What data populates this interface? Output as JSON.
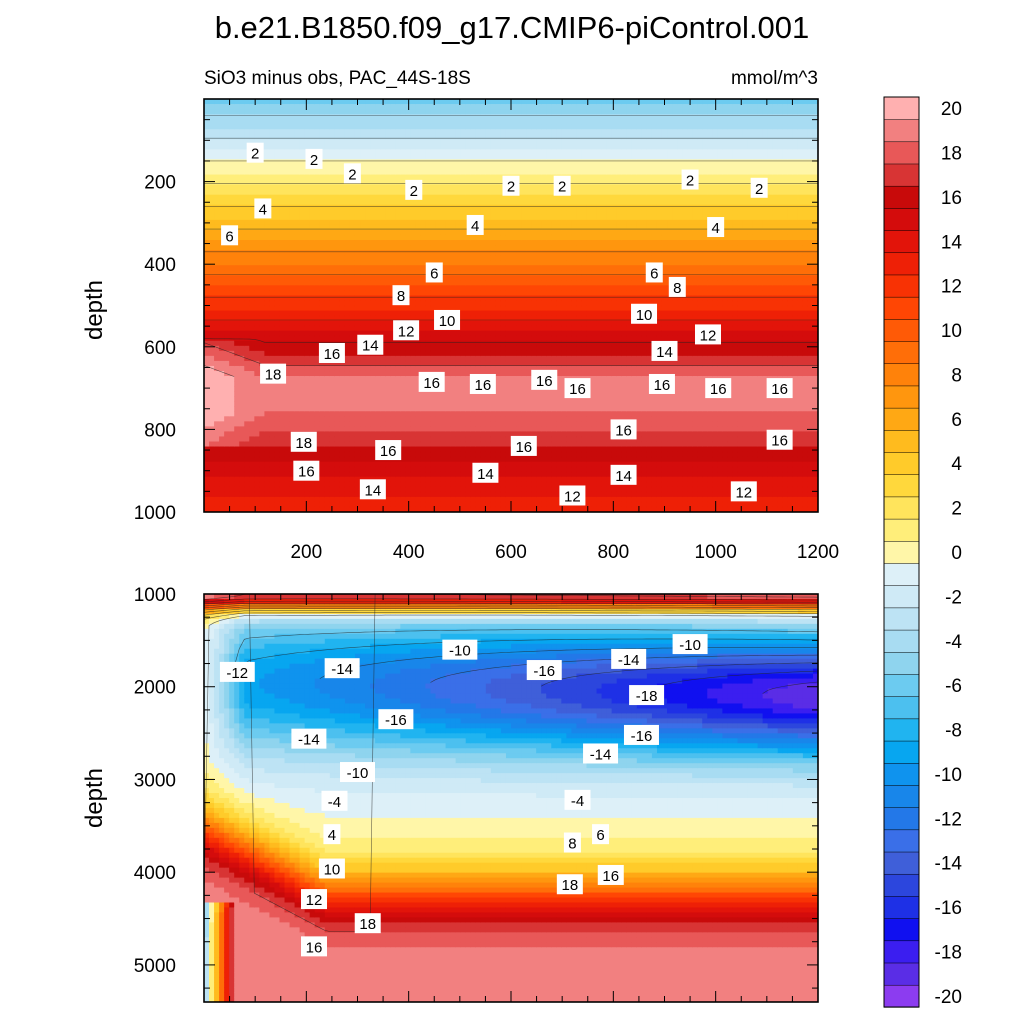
{
  "chart_data": {
    "type": "contour",
    "title": "b.e21.B1850.f09_g17.CMIP6-piControl.001",
    "subtitle": "SiO3 minus obs, PAC_44S-18S",
    "units": "mmol/m^3",
    "ylabel": "depth",
    "xlim": [
      0,
      1200
    ],
    "x_ticks": [
      200,
      400,
      600,
      800,
      1000,
      1200
    ],
    "upper_panel": {
      "ylim": [
        1000,
        0
      ],
      "y_ticks": [
        200,
        400,
        600,
        800,
        1000
      ],
      "contour_labels": [
        {
          "x": 100,
          "y": 130,
          "v": "2"
        },
        {
          "x": 215,
          "y": 145,
          "v": "2"
        },
        {
          "x": 290,
          "y": 180,
          "v": "2"
        },
        {
          "x": 410,
          "y": 220,
          "v": "2"
        },
        {
          "x": 600,
          "y": 210,
          "v": "2"
        },
        {
          "x": 700,
          "y": 210,
          "v": "2"
        },
        {
          "x": 950,
          "y": 195,
          "v": "2"
        },
        {
          "x": 1085,
          "y": 215,
          "v": "2"
        },
        {
          "x": 115,
          "y": 265,
          "v": "4"
        },
        {
          "x": 530,
          "y": 305,
          "v": "4"
        },
        {
          "x": 1000,
          "y": 310,
          "v": "4"
        },
        {
          "x": 50,
          "y": 330,
          "v": "6"
        },
        {
          "x": 450,
          "y": 420,
          "v": "6"
        },
        {
          "x": 880,
          "y": 420,
          "v": "6"
        },
        {
          "x": 385,
          "y": 475,
          "v": "8"
        },
        {
          "x": 925,
          "y": 455,
          "v": "8"
        },
        {
          "x": 475,
          "y": 535,
          "v": "10"
        },
        {
          "x": 860,
          "y": 520,
          "v": "10"
        },
        {
          "x": 395,
          "y": 560,
          "v": "12"
        },
        {
          "x": 985,
          "y": 570,
          "v": "12"
        },
        {
          "x": 325,
          "y": 595,
          "v": "14"
        },
        {
          "x": 900,
          "y": 610,
          "v": "14"
        },
        {
          "x": 250,
          "y": 615,
          "v": "16"
        },
        {
          "x": 445,
          "y": 685,
          "v": "16"
        },
        {
          "x": 545,
          "y": 690,
          "v": "16"
        },
        {
          "x": 665,
          "y": 680,
          "v": "16"
        },
        {
          "x": 730,
          "y": 700,
          "v": "16"
        },
        {
          "x": 895,
          "y": 690,
          "v": "16"
        },
        {
          "x": 1005,
          "y": 700,
          "v": "16"
        },
        {
          "x": 1125,
          "y": 700,
          "v": "16"
        },
        {
          "x": 135,
          "y": 665,
          "v": "18"
        },
        {
          "x": 195,
          "y": 830,
          "v": "18"
        },
        {
          "x": 820,
          "y": 800,
          "v": "16"
        },
        {
          "x": 1125,
          "y": 825,
          "v": "16"
        },
        {
          "x": 360,
          "y": 850,
          "v": "16"
        },
        {
          "x": 625,
          "y": 840,
          "v": "16"
        },
        {
          "x": 200,
          "y": 900,
          "v": "16"
        },
        {
          "x": 820,
          "y": 910,
          "v": "14"
        },
        {
          "x": 550,
          "y": 905,
          "v": "14"
        },
        {
          "x": 330,
          "y": 945,
          "v": "14"
        },
        {
          "x": 720,
          "y": 960,
          "v": "12"
        },
        {
          "x": 1055,
          "y": 950,
          "v": "12"
        }
      ]
    },
    "lower_panel": {
      "ylim": [
        5400,
        1000
      ],
      "y_ticks": [
        1000,
        2000,
        3000,
        4000,
        5000
      ],
      "contour_labels": [
        {
          "x": 65,
          "y": 1840,
          "v": "-12"
        },
        {
          "x": 270,
          "y": 1800,
          "v": "-14"
        },
        {
          "x": 500,
          "y": 1600,
          "v": "-10"
        },
        {
          "x": 665,
          "y": 1820,
          "v": "-16"
        },
        {
          "x": 830,
          "y": 1700,
          "v": "-14"
        },
        {
          "x": 950,
          "y": 1540,
          "v": "-10"
        },
        {
          "x": 865,
          "y": 2090,
          "v": "-18"
        },
        {
          "x": 375,
          "y": 2350,
          "v": "-16"
        },
        {
          "x": 205,
          "y": 2560,
          "v": "-14"
        },
        {
          "x": 855,
          "y": 2520,
          "v": "-16"
        },
        {
          "x": 775,
          "y": 2720,
          "v": "-14"
        },
        {
          "x": 300,
          "y": 2920,
          "v": "-10"
        },
        {
          "x": 255,
          "y": 3230,
          "v": "-4"
        },
        {
          "x": 730,
          "y": 3220,
          "v": "-4"
        },
        {
          "x": 250,
          "y": 3590,
          "v": "4"
        },
        {
          "x": 775,
          "y": 3590,
          "v": "6"
        },
        {
          "x": 720,
          "y": 3680,
          "v": "8"
        },
        {
          "x": 250,
          "y": 3960,
          "v": "10"
        },
        {
          "x": 795,
          "y": 4030,
          "v": "16"
        },
        {
          "x": 715,
          "y": 4130,
          "v": "18"
        },
        {
          "x": 215,
          "y": 4290,
          "v": "12"
        },
        {
          "x": 320,
          "y": 4550,
          "v": "18"
        },
        {
          "x": 215,
          "y": 4800,
          "v": "16"
        }
      ]
    },
    "colorbar": {
      "levels": [
        -20,
        -18,
        -16,
        -14,
        -12,
        -10,
        -8,
        -6,
        -4,
        -2,
        0,
        2,
        4,
        6,
        8,
        10,
        12,
        14,
        16,
        18,
        20
      ],
      "colors": [
        "#8c3cf0",
        "#5a2de6",
        "#3b1ef0",
        "#1010f0",
        "#1e30e6",
        "#2c46dd",
        "#3f5fd9",
        "#3a6fe8",
        "#2378e8",
        "#1886ea",
        "#0f93ee",
        "#07a6f0",
        "#20b4f0",
        "#4cc0ef",
        "#6ccbf0",
        "#8fd4ee",
        "#a8dcf2",
        "#bde3f4",
        "#cfeaf6",
        "#ddf0f8",
        "#fff6a8",
        "#ffee7a",
        "#ffe45c",
        "#ffd83c",
        "#ffcb2a",
        "#ffbb1e",
        "#ffa814",
        "#ff960e",
        "#ff820a",
        "#ff6e08",
        "#ff5a06",
        "#ff4604",
        "#f83204",
        "#ee2006",
        "#e2140a",
        "#d40c0c",
        "#c80a0a",
        "#d83434",
        "#e85858",
        "#f28080",
        "#ffb0b0"
      ]
    }
  }
}
